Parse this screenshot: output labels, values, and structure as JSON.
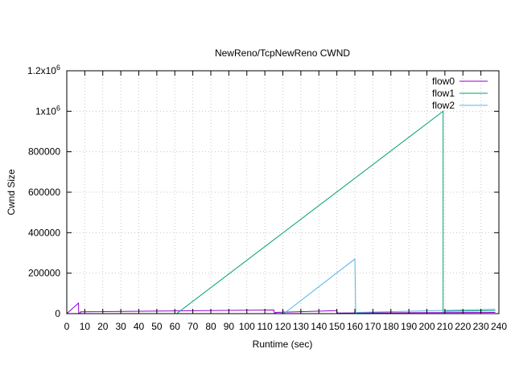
{
  "chart_data": {
    "type": "line",
    "title": "NewReno/TcpNewReno CWND",
    "xlabel": "Runtime (sec)",
    "ylabel": "Cwnd Size",
    "xlim": [
      0,
      240
    ],
    "ylim": [
      0,
      1200000
    ],
    "x_ticks": [
      0,
      10,
      20,
      30,
      40,
      50,
      60,
      70,
      80,
      90,
      100,
      110,
      120,
      130,
      140,
      150,
      160,
      170,
      180,
      190,
      200,
      210,
      220,
      230,
      240
    ],
    "y_ticks": [
      {
        "value": 0,
        "label": "0"
      },
      {
        "value": 200000,
        "label": "200000"
      },
      {
        "value": 400000,
        "label": "400000"
      },
      {
        "value": 600000,
        "label": "600000"
      },
      {
        "value": 800000,
        "label": "800000"
      },
      {
        "value": 1000000,
        "label": "1x10",
        "exp": "6"
      },
      {
        "value": 1200000,
        "label": "1.2x10",
        "exp": "6"
      }
    ],
    "grid": true,
    "legend_position": "top-right",
    "series": [
      {
        "name": "flow0",
        "color": "#9400d3",
        "points": [
          [
            0,
            0
          ],
          [
            6.5,
            52000
          ],
          [
            6.6,
            3000
          ],
          [
            7.6,
            3000
          ],
          [
            7.6,
            9000
          ],
          [
            115,
            18000
          ],
          [
            115.3,
            3000
          ],
          [
            116,
            3000
          ],
          [
            116,
            6000
          ],
          [
            150,
            15000
          ],
          [
            150.3,
            3000
          ],
          [
            238,
            6000
          ]
        ]
      },
      {
        "name": "flow1",
        "color": "#009e73",
        "points": [
          [
            61,
            0
          ],
          [
            209,
            1000000
          ],
          [
            209,
            0
          ],
          [
            210,
            0
          ],
          [
            210,
            12000
          ],
          [
            238,
            15000
          ]
        ]
      },
      {
        "name": "flow2",
        "color": "#56b4e9",
        "points": [
          [
            119,
            0
          ],
          [
            120.5,
            12000
          ],
          [
            120.7,
            1000
          ],
          [
            121,
            3000
          ],
          [
            160,
            270000
          ],
          [
            160.5,
            1000
          ],
          [
            161,
            6000
          ],
          [
            238,
            22000
          ]
        ]
      }
    ]
  }
}
